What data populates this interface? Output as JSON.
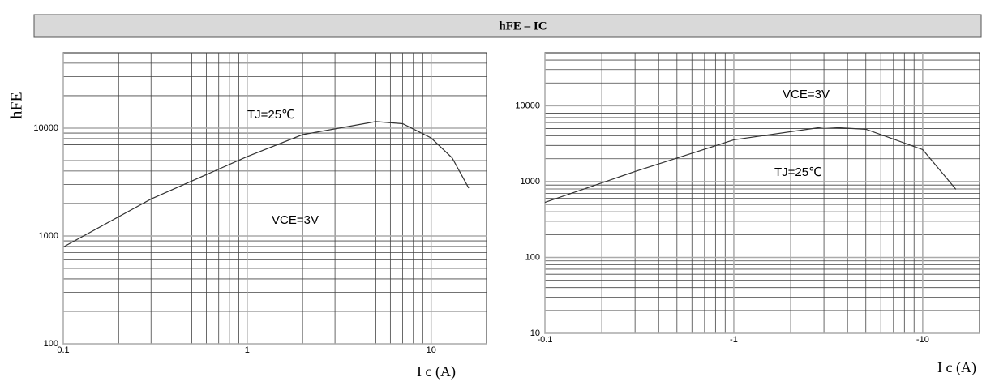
{
  "header": {
    "title": "hFE – IC"
  },
  "chart_data": [
    {
      "type": "line",
      "y_label": "hFE",
      "x_label": "I c (A)",
      "annotations": [
        "TJ=25℃",
        "VCE=3V"
      ],
      "x": [
        0.1,
        0.3,
        1,
        2,
        5,
        7,
        10,
        13,
        16
      ],
      "values": [
        790,
        2200,
        5450,
        8700,
        11500,
        11000,
        8100,
        5300,
        2780
      ],
      "color": "#333333",
      "xlim": [
        0.1,
        20
      ],
      "ylim": [
        100,
        50000
      ],
      "xticks": [
        0.1,
        1,
        10
      ],
      "yticks": [
        100,
        1000,
        10000
      ],
      "log_x": true,
      "log_y": true,
      "grid": true,
      "minor_grid": true
    },
    {
      "type": "line",
      "x_label": "I c (A)",
      "annotations": [
        "VCE=3V",
        "TJ=25℃"
      ],
      "x": [
        0.1,
        0.3,
        1,
        3,
        5,
        10,
        15
      ],
      "values": [
        532,
        1360,
        3550,
        5260,
        4900,
        2640,
        790
      ],
      "color": "#333333",
      "xlim": [
        0.1,
        20
      ],
      "ylim": [
        10,
        50000
      ],
      "xticks": [
        {
          "value": 0.1,
          "label": "-0.1"
        },
        {
          "value": 1,
          "label": "-1"
        },
        {
          "value": 10,
          "label": "-10"
        }
      ],
      "yticks": [
        10,
        100,
        1000,
        10000
      ],
      "log_x": true,
      "log_y": true,
      "grid": true,
      "minor_grid": true
    }
  ]
}
